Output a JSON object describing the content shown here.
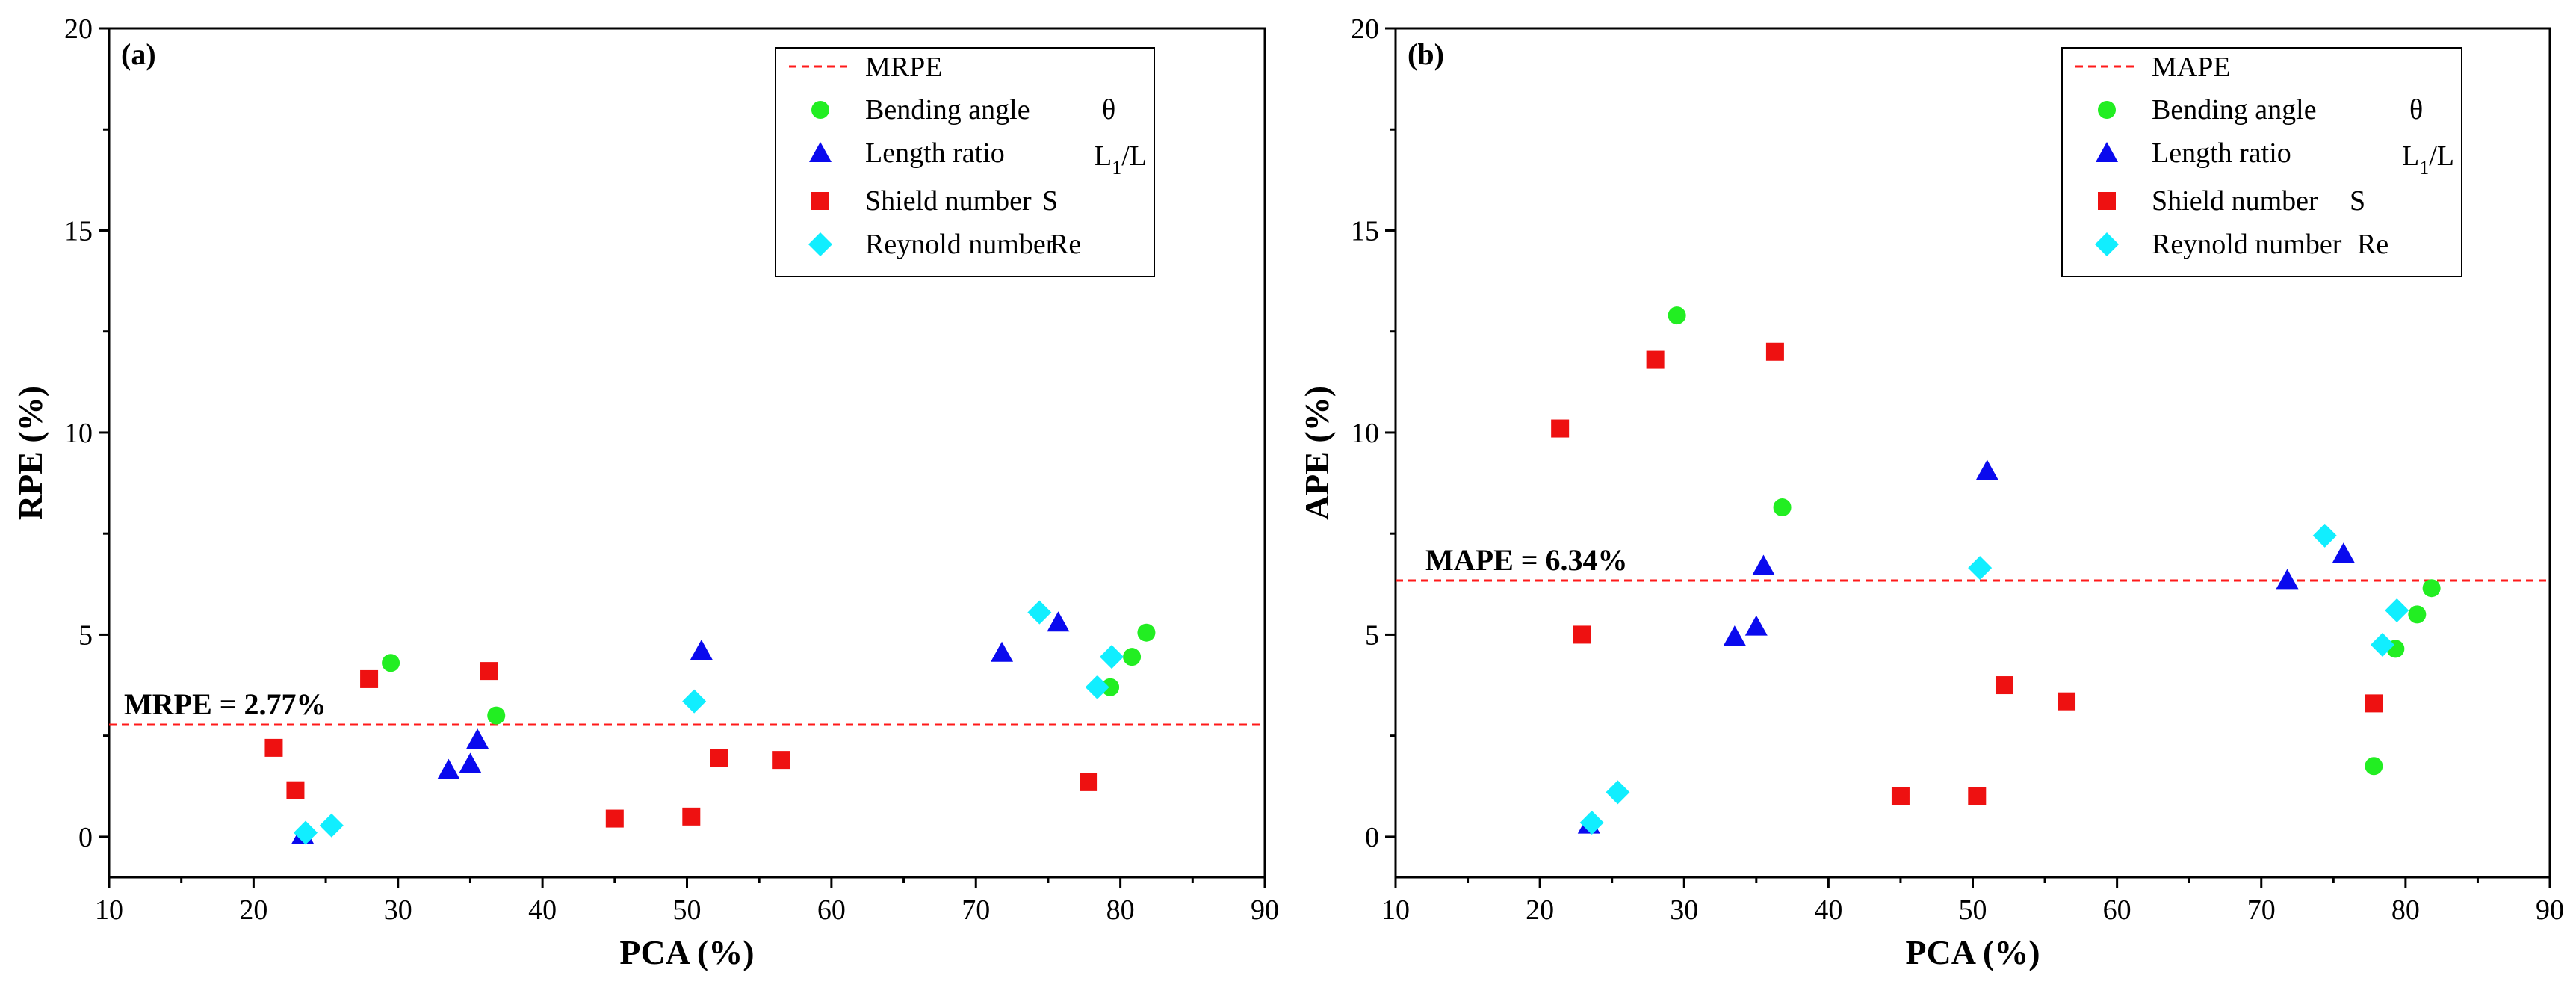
{
  "chart_data": [
    {
      "type": "scatter",
      "panel_label": "(a)",
      "xlabel": "PCA (%)",
      "ylabel": "RPE (%)",
      "xlim": [
        10,
        90
      ],
      "ylim": [
        -1,
        20
      ],
      "xticks": [
        10,
        20,
        30,
        40,
        50,
        60,
        70,
        80,
        90
      ],
      "yticks": [
        0,
        5,
        10,
        15,
        20
      ],
      "legend_position": "top-right",
      "reference_line": {
        "name": "MRPE",
        "value": 2.77,
        "annotation": "MRPE = 2.77%"
      },
      "series": [
        {
          "name": "Bending angle",
          "symbol": "θ",
          "marker": "circle",
          "color": "#22ee22",
          "points": [
            [
              29.5,
              4.3
            ],
            [
              36.8,
              3.0
            ],
            [
              79.3,
              3.7
            ],
            [
              80.8,
              4.45
            ],
            [
              81.8,
              5.05
            ]
          ]
        },
        {
          "name": "Length ratio",
          "symbol": "L1/L",
          "symbol_main": "L",
          "symbol_sub": "1",
          "symbol_tail": "/L",
          "marker": "triangle",
          "color": "#0a0aee",
          "points": [
            [
              23.4,
              0.05
            ],
            [
              33.5,
              1.65
            ],
            [
              35.0,
              1.8
            ],
            [
              35.5,
              2.4
            ],
            [
              51.0,
              4.6
            ],
            [
              71.8,
              4.55
            ],
            [
              75.7,
              5.3
            ]
          ]
        },
        {
          "name": "Shield number",
          "symbol": "S",
          "marker": "square",
          "color": "#ee1111",
          "points": [
            [
              21.4,
              2.2
            ],
            [
              22.9,
              1.15
            ],
            [
              28.0,
              3.9
            ],
            [
              36.3,
              4.1
            ],
            [
              45.0,
              0.45
            ],
            [
              50.3,
              0.5
            ],
            [
              52.2,
              1.95
            ],
            [
              56.5,
              1.9
            ],
            [
              77.8,
              1.35
            ]
          ]
        },
        {
          "name": "Reynold number",
          "symbol": "Re",
          "marker": "diamond",
          "color": "#11eeff",
          "points": [
            [
              23.6,
              0.1
            ],
            [
              25.4,
              0.28
            ],
            [
              50.5,
              3.35
            ],
            [
              74.4,
              5.55
            ],
            [
              78.4,
              3.7
            ],
            [
              79.4,
              4.45
            ]
          ]
        }
      ]
    },
    {
      "type": "scatter",
      "panel_label": "(b)",
      "xlabel": "PCA (%)",
      "ylabel": "APE (%)",
      "xlim": [
        10,
        90
      ],
      "ylim": [
        -1,
        20
      ],
      "xticks": [
        10,
        20,
        30,
        40,
        50,
        60,
        70,
        80,
        90
      ],
      "yticks": [
        0,
        5,
        10,
        15,
        20
      ],
      "legend_position": "top-right",
      "reference_line": {
        "name": "MAPE",
        "value": 6.34,
        "annotation": "MAPE = 6.34%"
      },
      "series": [
        {
          "name": "Bending angle",
          "symbol": "θ",
          "marker": "circle",
          "color": "#22ee22",
          "points": [
            [
              29.5,
              12.9
            ],
            [
              36.8,
              8.15
            ],
            [
              77.8,
              1.75
            ],
            [
              79.3,
              4.65
            ],
            [
              80.8,
              5.5
            ],
            [
              81.8,
              6.15
            ]
          ]
        },
        {
          "name": "Length ratio",
          "symbol": "L1/L",
          "symbol_main": "L",
          "symbol_sub": "1",
          "symbol_tail": "/L",
          "marker": "triangle",
          "color": "#0a0aee",
          "points": [
            [
              23.4,
              0.3
            ],
            [
              33.5,
              4.95
            ],
            [
              35.0,
              5.2
            ],
            [
              35.5,
              6.7
            ],
            [
              51.0,
              9.05
            ],
            [
              71.8,
              6.35
            ],
            [
              75.7,
              7.0
            ]
          ]
        },
        {
          "name": "Shield number",
          "symbol": "S",
          "marker": "square",
          "color": "#ee1111",
          "points": [
            [
              21.4,
              10.1
            ],
            [
              22.9,
              5.0
            ],
            [
              28.0,
              11.8
            ],
            [
              36.3,
              12.0
            ],
            [
              45.0,
              1.0
            ],
            [
              50.3,
              1.0
            ],
            [
              52.2,
              3.75
            ],
            [
              56.5,
              3.35
            ],
            [
              77.8,
              3.3
            ]
          ]
        },
        {
          "name": "Reynold number",
          "symbol": "Re",
          "marker": "diamond",
          "color": "#11eeff",
          "points": [
            [
              23.6,
              0.35
            ],
            [
              25.4,
              1.1
            ],
            [
              50.5,
              6.65
            ],
            [
              74.4,
              7.45
            ],
            [
              78.4,
              4.75
            ],
            [
              79.4,
              5.6
            ]
          ]
        }
      ]
    }
  ]
}
